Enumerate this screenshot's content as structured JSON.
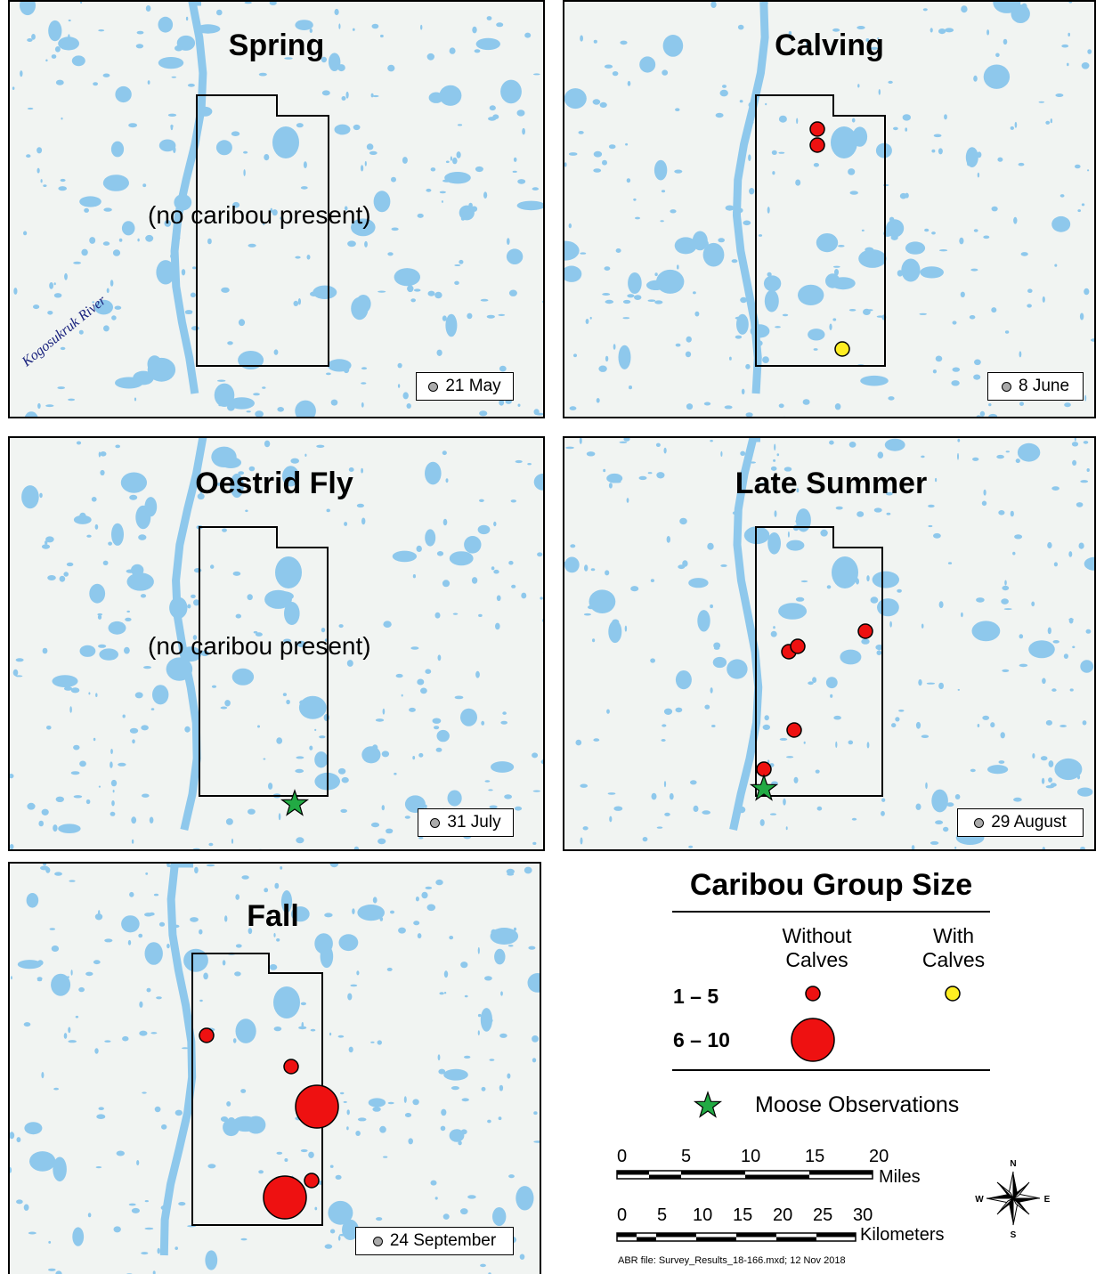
{
  "panels": [
    {
      "title": "Spring",
      "date": "21 May",
      "note": "(no caribou present)",
      "river_label": "Kogosukruk River",
      "groups": [],
      "moose": []
    },
    {
      "title": "Calving",
      "date": "8 June",
      "note": "",
      "groups": [
        {
          "size": "1-5",
          "calves": false
        },
        {
          "size": "1-5",
          "calves": false
        },
        {
          "size": "1-5",
          "calves": true
        }
      ],
      "moose": []
    },
    {
      "title": "Oestrid Fly",
      "date": "31 July",
      "note": "(no caribou present)",
      "groups": [],
      "moose": [
        1
      ]
    },
    {
      "title": "Late Summer",
      "date": "29 August",
      "note": "",
      "groups": [
        {
          "size": "1-5",
          "calves": false
        },
        {
          "size": "1-5",
          "calves": false
        },
        {
          "size": "1-5",
          "calves": false
        },
        {
          "size": "1-5",
          "calves": false
        },
        {
          "size": "1-5",
          "calves": false
        }
      ],
      "moose": [
        1
      ]
    },
    {
      "title": "Fall",
      "date": "24 September",
      "note": "",
      "groups": [
        {
          "size": "1-5",
          "calves": false
        },
        {
          "size": "1-5",
          "calves": false
        },
        {
          "size": "6-10",
          "calves": false
        },
        {
          "size": "1-5",
          "calves": false
        },
        {
          "size": "6-10",
          "calves": false
        }
      ],
      "moose": []
    }
  ],
  "legend": {
    "title": "Caribou Group Size",
    "col_without": "Without\nCalves",
    "col_with": "With\nCalves",
    "row_small": "1 – 5",
    "row_large": "6 – 10",
    "moose_label": "Moose Observations",
    "colors": {
      "without_calves": "#ee1111",
      "with_calves": "#ffee22",
      "moose": "#22aa44",
      "water": "#8ec8ec"
    }
  },
  "scale": {
    "miles_ticks": [
      "0",
      "5",
      "10",
      "15",
      "20"
    ],
    "miles_label": "Miles",
    "km_ticks": [
      "0",
      "5",
      "10",
      "15",
      "20",
      "25",
      "30"
    ],
    "km_label": "Kilometers"
  },
  "compass": {
    "n": "N",
    "s": "S",
    "e": "E",
    "w": "W"
  },
  "footer": "ABR file: Survey_Results_18-166.mxd; 12 Nov 2018"
}
